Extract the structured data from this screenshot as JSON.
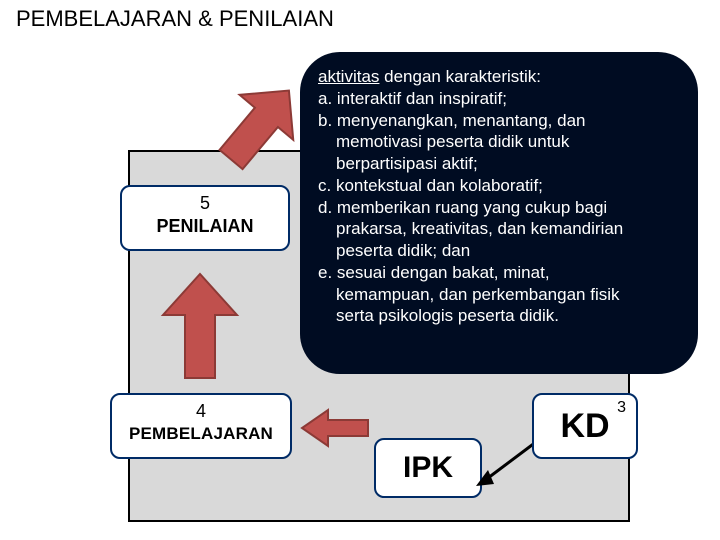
{
  "title": "PEMBELAJARAN & PENILAIAN",
  "boxes": {
    "penilaian": {
      "num": "5",
      "label": "PENILAIAN"
    },
    "pembelajaran": {
      "num": "4",
      "label": "PEMBELAJARAN"
    },
    "ipk": {
      "label": "IPK"
    },
    "kd": {
      "num": "3",
      "label": "KD"
    }
  },
  "callout": {
    "head_underlined": "aktivitas",
    "head_rest": " dengan karakteristik:",
    "lines": [
      "a. interaktif dan inspiratif;",
      "b. menyenangkan, menantang, dan",
      "    memotivasi peserta didik untuk",
      "    berpartisipasi aktif;",
      "c. kontekstual dan kolaboratif;",
      "d. memberikan ruang yang cukup bagi",
      "    prakarsa, kreativitas, dan kemandirian",
      "    peserta didik; dan",
      "e. sesuai dengan bakat, minat,",
      "    kemampuan, dan perkembangan fisik",
      "    serta psikologis peserta didik."
    ]
  },
  "colors": {
    "callout_bg": "#000c22",
    "callout_text": "#ffffff",
    "box_border": "#002b66",
    "page_bg": "#ffffff",
    "grey": "#d9d9d9",
    "arrow_red": "#c0504d",
    "arrow_red_border": "#8c3a36"
  }
}
